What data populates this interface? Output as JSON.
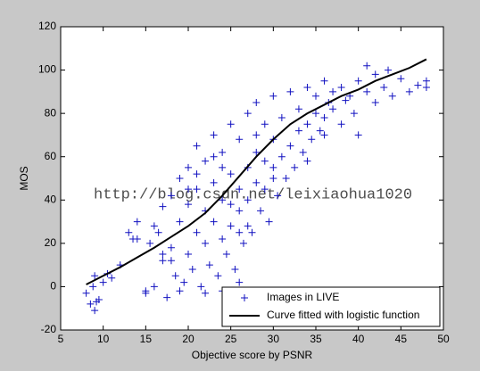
{
  "chart_data": {
    "type": "scatter",
    "xlabel": "Objective score by PSNR",
    "ylabel": "MOS",
    "watermark": "http://blog.csdn.net/leixiaohua1020",
    "xlim": [
      5,
      50
    ],
    "ylim": [
      -20,
      120
    ],
    "xticks": [
      5,
      10,
      15,
      20,
      25,
      30,
      35,
      40,
      45,
      50
    ],
    "yticks": [
      -20,
      0,
      20,
      40,
      60,
      80,
      100,
      120
    ],
    "legend": "lower right",
    "series": [
      {
        "name": "Images in LIVE",
        "type": "scatter",
        "color": "#1010c0",
        "x": [
          8,
          8.5,
          9,
          9,
          9.5,
          10,
          10.5,
          11,
          8.8,
          9.2,
          12,
          13,
          13.5,
          14,
          15,
          15.5,
          16,
          16,
          17,
          17,
          17.5,
          18,
          18,
          18.5,
          19,
          19,
          19.5,
          20,
          20,
          20,
          20.5,
          21,
          21,
          21,
          21.5,
          22,
          22,
          22,
          22.5,
          23,
          23,
          23,
          23.5,
          24,
          24,
          24,
          24.5,
          25,
          25,
          25,
          25.5,
          26,
          26,
          26,
          26.5,
          27,
          27,
          27,
          27.5,
          28,
          28,
          28,
          28.5,
          29,
          29,
          29,
          29.5,
          30,
          30,
          30,
          30.5,
          31,
          31,
          31.5,
          32,
          32,
          32.5,
          33,
          33,
          33.5,
          34,
          34,
          34.5,
          35,
          35,
          35.5,
          36,
          36,
          36.5,
          37,
          37,
          38,
          38,
          38.5,
          39,
          39.5,
          40,
          40,
          41,
          41,
          42,
          42,
          43,
          43.5,
          44,
          45,
          46,
          47,
          48,
          48,
          15,
          16.5,
          19,
          22,
          24,
          26,
          18,
          20,
          23,
          25,
          27,
          21,
          17,
          14,
          34,
          28,
          30,
          36,
          24,
          26
        ],
        "values": [
          -3,
          -8,
          5,
          -11,
          -6,
          2,
          6,
          4,
          0,
          -7,
          10,
          25,
          22,
          30,
          -3,
          20,
          0,
          28,
          12,
          37,
          -5,
          18,
          42,
          5,
          30,
          50,
          2,
          15,
          38,
          55,
          8,
          25,
          45,
          65,
          0,
          20,
          35,
          58,
          10,
          30,
          48,
          70,
          5,
          22,
          40,
          62,
          15,
          28,
          52,
          75,
          8,
          35,
          45,
          68,
          20,
          40,
          55,
          80,
          25,
          48,
          62,
          85,
          35,
          45,
          58,
          75,
          30,
          55,
          68,
          88,
          42,
          60,
          78,
          50,
          65,
          90,
          55,
          72,
          82,
          62,
          75,
          92,
          68,
          80,
          88,
          72,
          78,
          95,
          85,
          82,
          90,
          75,
          92,
          86,
          88,
          80,
          70,
          95,
          90,
          102,
          85,
          98,
          92,
          100,
          88,
          96,
          90,
          93,
          92,
          95,
          -2,
          25,
          -2,
          -3,
          -2,
          2,
          12,
          45,
          60,
          38,
          28,
          52,
          15,
          22,
          58,
          70,
          50,
          70,
          55,
          25
        ]
      },
      {
        "name": "Curve fitted with logistic function",
        "type": "line",
        "color": "#000000",
        "x": [
          8,
          10,
          12,
          14,
          16,
          18,
          20,
          22,
          24,
          26,
          28,
          30,
          32,
          34,
          36,
          38,
          40,
          42,
          44,
          46,
          48
        ],
        "values": [
          1,
          5,
          9,
          13.5,
          18,
          23,
          28,
          34,
          42,
          51,
          60,
          68,
          75,
          80,
          84,
          88,
          91,
          95,
          98,
          101,
          105
        ]
      }
    ]
  }
}
